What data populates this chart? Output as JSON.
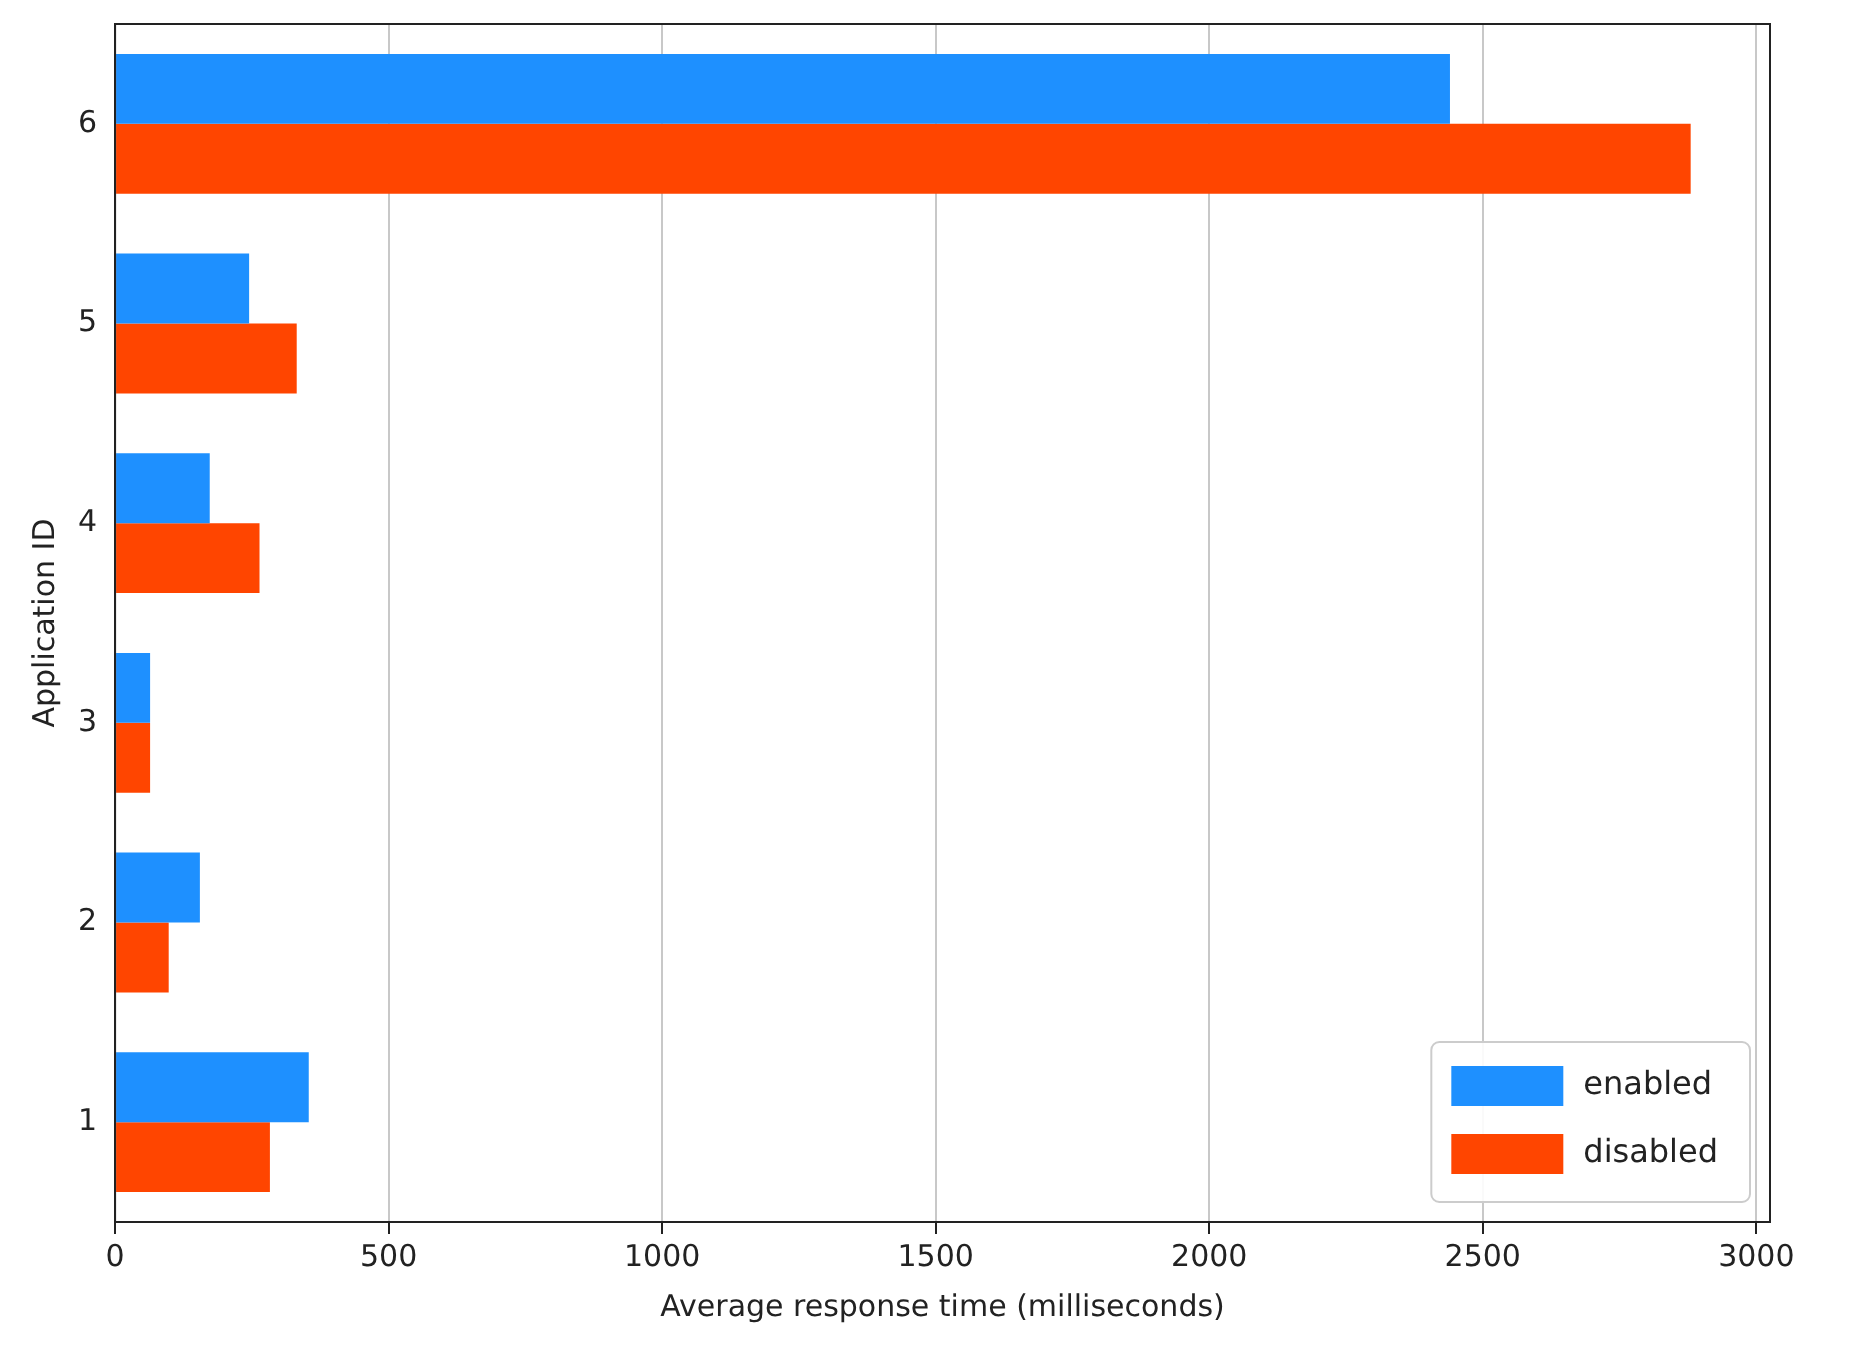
{
  "chart_data": {
    "type": "bar",
    "orientation": "horizontal",
    "xlabel": "Average response time (milliseconds)",
    "ylabel": "Application ID",
    "categories": [
      "6",
      "5",
      "4",
      "3",
      "2",
      "1"
    ],
    "series": [
      {
        "name": "enabled",
        "color": "#1e90ff",
        "values": [
          2440,
          245,
          173,
          64,
          155,
          354
        ]
      },
      {
        "name": "disabled",
        "color": "#ff4500",
        "values": [
          2880,
          332,
          264,
          64,
          98,
          283
        ]
      }
    ],
    "xlim": [
      0,
      3025
    ],
    "xticks": [
      0,
      500,
      1000,
      1500,
      2000,
      2500,
      3000
    ],
    "grid": "x",
    "legend": "bottom right"
  }
}
